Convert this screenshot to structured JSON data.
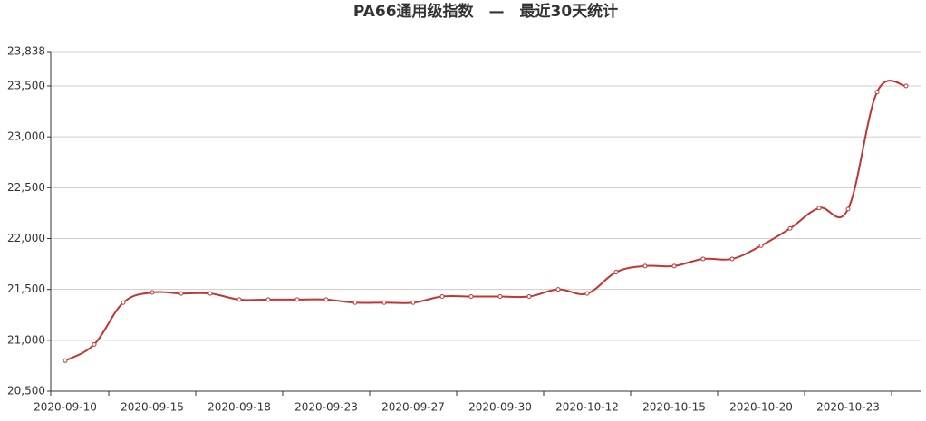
{
  "chart_data": {
    "type": "line",
    "title": "PA66通用级指数　—　最近30天统计",
    "categories": [
      "2020-09-10",
      null,
      null,
      "2020-09-15",
      null,
      null,
      "2020-09-18",
      null,
      null,
      "2020-09-23",
      null,
      null,
      "2020-09-27",
      null,
      null,
      "2020-09-30",
      null,
      null,
      "2020-10-12",
      null,
      null,
      "2020-10-15",
      null,
      null,
      "2020-10-20",
      null,
      null,
      "2020-10-23",
      null,
      null
    ],
    "series": [
      {
        "name": "PA66通用级指数",
        "color": "#c23531",
        "values": [
          20800,
          20960,
          21370,
          21470,
          21460,
          21460,
          21400,
          21400,
          21400,
          21400,
          21370,
          21370,
          21370,
          21430,
          21430,
          21430,
          21430,
          21500,
          21460,
          21670,
          21730,
          21730,
          21800,
          21800,
          21930,
          22100,
          22300,
          22290,
          23440,
          23500
        ]
      }
    ],
    "ylim": [
      20500,
      23838
    ],
    "yticks": [
      {
        "value": 20500,
        "label": "20,500"
      },
      {
        "value": 21000,
        "label": "21,000"
      },
      {
        "value": 21500,
        "label": "21,500"
      },
      {
        "value": 22000,
        "label": "22,000"
      },
      {
        "value": 22500,
        "label": "22,500"
      },
      {
        "value": 23000,
        "label": "23,000"
      },
      {
        "value": 23500,
        "label": "23,500"
      },
      {
        "value": 23838,
        "label": "23,838"
      }
    ],
    "grid": true
  }
}
